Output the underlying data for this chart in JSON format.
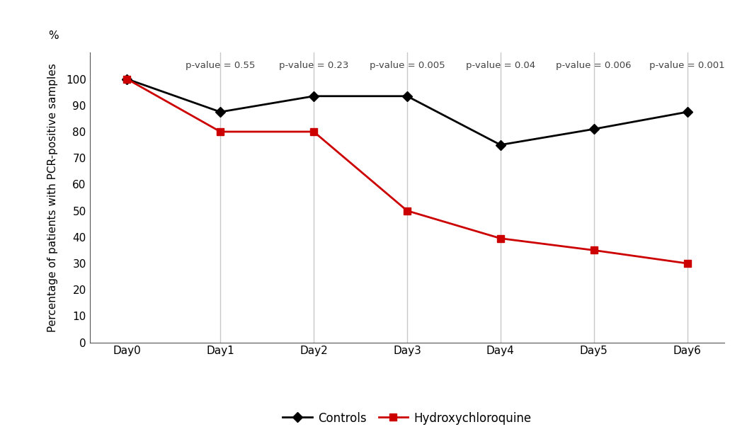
{
  "days": [
    "Day0",
    "Day1",
    "Day2",
    "Day3",
    "Day4",
    "Day5",
    "Day6"
  ],
  "controls": [
    100,
    87.5,
    93.5,
    93.5,
    75,
    81,
    87.5
  ],
  "hydroxychloroquine": [
    100,
    80,
    80,
    50,
    39.5,
    35,
    30
  ],
  "p_values": [
    "p-value = 0.55",
    "p-value = 0.23",
    "p-value = 0.005",
    "p-value = 0.04",
    "p-value = 0.006",
    "p-value = 0.001"
  ],
  "controls_color": "#000000",
  "hcq_color": "#cc0000",
  "ylabel": "Percentage of patients with PCR-positive samples",
  "percent_label": "%",
  "ylim": [
    0,
    110
  ],
  "yticks": [
    0,
    10,
    20,
    30,
    40,
    50,
    60,
    70,
    80,
    90,
    100
  ],
  "legend_controls": "Controls",
  "legend_hcq": "Hydroxychloroquine",
  "background_color": "#ffffff",
  "grid_color": "#c8c8c8",
  "p_value_fontsize": 9.5,
  "axis_fontsize": 11,
  "ylabel_fontsize": 11,
  "legend_fontsize": 12
}
